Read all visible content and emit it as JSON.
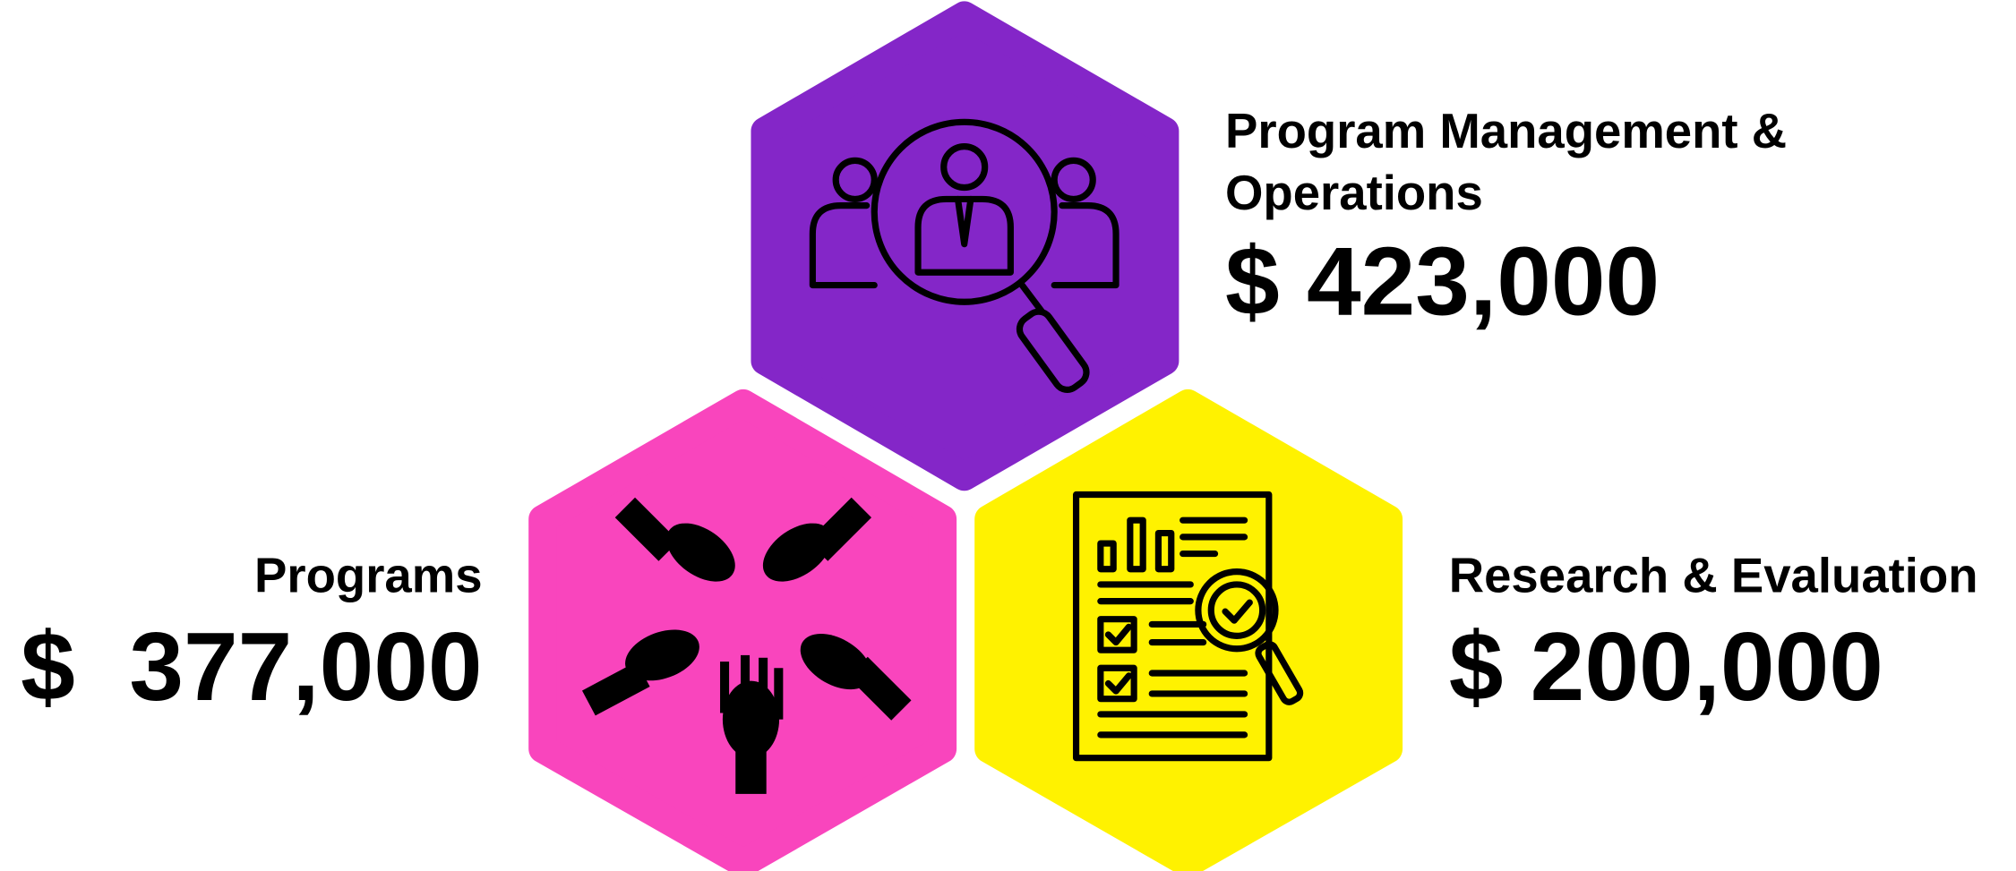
{
  "items": [
    {
      "label": [
        "Program Management &",
        "Operations"
      ],
      "amount": "$ 423,000"
    },
    {
      "label": [
        "Programs"
      ],
      "amount": "$  377,000"
    },
    {
      "label": [
        "Research & Evaluation"
      ],
      "amount": "$ 200,000"
    }
  ]
}
